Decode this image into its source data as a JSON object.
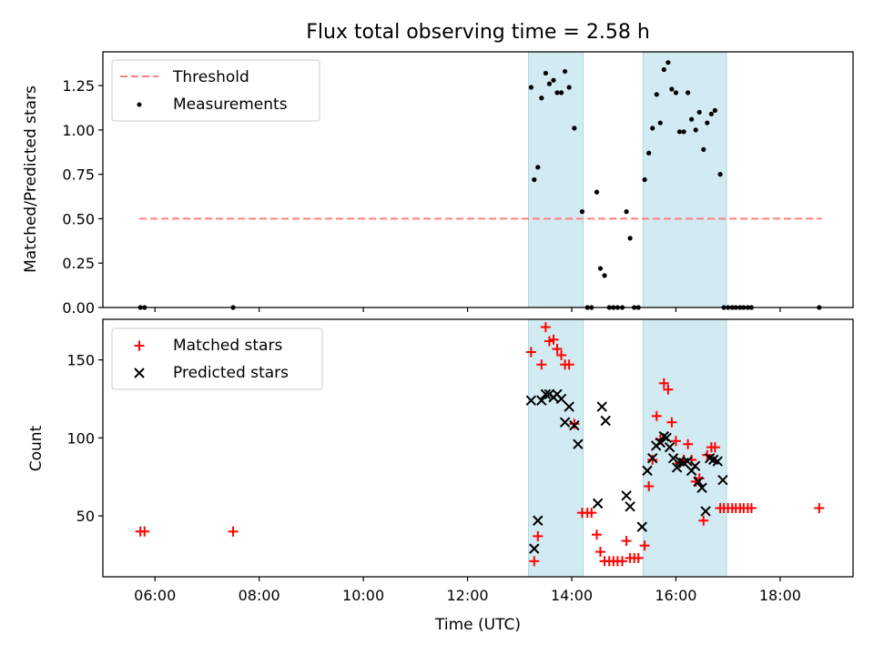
{
  "figure": {
    "title": "Flux total observing time = 2.58 h"
  },
  "colors": {
    "threshold": "#ff7f7f",
    "measurements": "#000000",
    "matched": "#ff0000",
    "predicted": "#000000",
    "shade": "#add8e6"
  },
  "chart_data": [
    {
      "type": "scatter",
      "title": "Flux total observing time = 2.58 h",
      "xlabel": "",
      "ylabel": "Matched/Predicted stars",
      "x_unit": "hours UTC",
      "xlim": [
        5.0,
        19.4
      ],
      "ylim": [
        0,
        1.44
      ],
      "x_ticks": [
        6,
        8,
        10,
        12,
        14,
        16,
        18
      ],
      "y_ticks": [
        0.0,
        0.25,
        0.5,
        0.75,
        1.0,
        1.25
      ],
      "y_tick_labels": [
        "0.00",
        "0.25",
        "0.50",
        "0.75",
        "1.00",
        "1.25"
      ],
      "legend_position": "top-left",
      "grid": false,
      "shaded_intervals": [
        [
          13.17,
          14.22
        ],
        [
          15.37,
          16.97
        ]
      ],
      "threshold": {
        "name": "Threshold",
        "value": 0.5,
        "x_range": [
          5.7,
          18.8
        ],
        "style": "dashed"
      },
      "series": [
        {
          "name": "Measurements",
          "marker": "dot",
          "points": [
            [
              5.72,
              0.0
            ],
            [
              5.8,
              0.0
            ],
            [
              7.5,
              0.0
            ],
            [
              13.22,
              1.24
            ],
            [
              13.28,
              0.72
            ],
            [
              13.35,
              0.79
            ],
            [
              13.42,
              1.18
            ],
            [
              13.5,
              1.32
            ],
            [
              13.57,
              1.26
            ],
            [
              13.65,
              1.28
            ],
            [
              13.72,
              1.21
            ],
            [
              13.8,
              1.21
            ],
            [
              13.87,
              1.33
            ],
            [
              13.95,
              1.24
            ],
            [
              14.05,
              1.01
            ],
            [
              14.2,
              0.54
            ],
            [
              14.3,
              0.0
            ],
            [
              14.38,
              0.0
            ],
            [
              14.48,
              0.65
            ],
            [
              14.55,
              0.22
            ],
            [
              14.63,
              0.18
            ],
            [
              14.72,
              0.0
            ],
            [
              14.8,
              0.0
            ],
            [
              14.88,
              0.0
            ],
            [
              14.97,
              0.0
            ],
            [
              15.05,
              0.54
            ],
            [
              15.12,
              0.39
            ],
            [
              15.2,
              0.0
            ],
            [
              15.28,
              0.0
            ],
            [
              15.4,
              0.72
            ],
            [
              15.48,
              0.87
            ],
            [
              15.55,
              1.01
            ],
            [
              15.63,
              1.2
            ],
            [
              15.7,
              1.04
            ],
            [
              15.77,
              1.34
            ],
            [
              15.85,
              1.38
            ],
            [
              15.92,
              1.23
            ],
            [
              16.0,
              1.21
            ],
            [
              16.07,
              0.99
            ],
            [
              16.15,
              0.99
            ],
            [
              16.23,
              1.21
            ],
            [
              16.3,
              1.06
            ],
            [
              16.38,
              1.0
            ],
            [
              16.45,
              1.1
            ],
            [
              16.53,
              0.89
            ],
            [
              16.6,
              1.04
            ],
            [
              16.68,
              1.09
            ],
            [
              16.75,
              1.11
            ],
            [
              16.85,
              0.75
            ],
            [
              16.92,
              0.0
            ],
            [
              17.0,
              0.0
            ],
            [
              17.08,
              0.0
            ],
            [
              17.15,
              0.0
            ],
            [
              17.23,
              0.0
            ],
            [
              17.3,
              0.0
            ],
            [
              17.38,
              0.0
            ],
            [
              17.45,
              0.0
            ],
            [
              18.75,
              0.0
            ]
          ]
        }
      ]
    },
    {
      "type": "scatter",
      "title": "",
      "xlabel": "Time (UTC)",
      "ylabel": "Count",
      "x_unit": "hours UTC",
      "xlim": [
        5.0,
        19.4
      ],
      "ylim": [
        11,
        176
      ],
      "x_ticks": [
        6,
        8,
        10,
        12,
        14,
        16,
        18
      ],
      "x_tick_labels": [
        "06:00",
        "08:00",
        "10:00",
        "12:00",
        "14:00",
        "16:00",
        "18:00"
      ],
      "y_ticks": [
        50,
        100,
        150
      ],
      "y_tick_labels": [
        "50",
        "100",
        "150"
      ],
      "legend_position": "top-left",
      "grid": false,
      "shaded_intervals": [
        [
          13.17,
          14.22
        ],
        [
          15.37,
          16.97
        ]
      ],
      "series": [
        {
          "name": "Matched stars",
          "marker": "plus",
          "points": [
            [
              5.72,
              40
            ],
            [
              5.8,
              40
            ],
            [
              7.5,
              40
            ],
            [
              13.22,
              155
            ],
            [
              13.28,
              21
            ],
            [
              13.35,
              37
            ],
            [
              13.42,
              147
            ],
            [
              13.5,
              171
            ],
            [
              13.57,
              162
            ],
            [
              13.65,
              163
            ],
            [
              13.72,
              157
            ],
            [
              13.8,
              153
            ],
            [
              13.87,
              147
            ],
            [
              13.95,
              147
            ],
            [
              14.05,
              109
            ],
            [
              14.2,
              52
            ],
            [
              14.3,
              52
            ],
            [
              14.38,
              52
            ],
            [
              14.48,
              38
            ],
            [
              14.55,
              27
            ],
            [
              14.63,
              21
            ],
            [
              14.72,
              21
            ],
            [
              14.8,
              21
            ],
            [
              14.88,
              21
            ],
            [
              14.97,
              21
            ],
            [
              15.05,
              34
            ],
            [
              15.12,
              23
            ],
            [
              15.2,
              23
            ],
            [
              15.28,
              23
            ],
            [
              15.4,
              31
            ],
            [
              15.48,
              69
            ],
            [
              15.55,
              86
            ],
            [
              15.63,
              114
            ],
            [
              15.7,
              99
            ],
            [
              15.77,
              135
            ],
            [
              15.85,
              131
            ],
            [
              15.92,
              110
            ],
            [
              16.0,
              98
            ],
            [
              16.07,
              84
            ],
            [
              16.15,
              86
            ],
            [
              16.23,
              96
            ],
            [
              16.3,
              86
            ],
            [
              16.38,
              72
            ],
            [
              16.45,
              74
            ],
            [
              16.53,
              47
            ],
            [
              16.6,
              89
            ],
            [
              16.68,
              94
            ],
            [
              16.75,
              94
            ],
            [
              16.85,
              55
            ],
            [
              16.92,
              55
            ],
            [
              17.0,
              55
            ],
            [
              17.08,
              55
            ],
            [
              17.15,
              55
            ],
            [
              17.23,
              55
            ],
            [
              17.3,
              55
            ],
            [
              17.38,
              55
            ],
            [
              17.45,
              55
            ],
            [
              18.75,
              55
            ]
          ]
        },
        {
          "name": "Predicted stars",
          "marker": "x",
          "points": [
            [
              13.22,
              124
            ],
            [
              13.28,
              29
            ],
            [
              13.35,
              47
            ],
            [
              13.42,
              124
            ],
            [
              13.5,
              128
            ],
            [
              13.57,
              128
            ],
            [
              13.65,
              126
            ],
            [
              13.72,
              128
            ],
            [
              13.8,
              125
            ],
            [
              13.87,
              110
            ],
            [
              13.95,
              120
            ],
            [
              14.05,
              108
            ],
            [
              14.12,
              96
            ],
            [
              14.5,
              58
            ],
            [
              14.58,
              120
            ],
            [
              14.65,
              111
            ],
            [
              15.05,
              63
            ],
            [
              15.12,
              56
            ],
            [
              15.35,
              43
            ],
            [
              15.45,
              79
            ],
            [
              15.55,
              87
            ],
            [
              15.62,
              95
            ],
            [
              15.7,
              97
            ],
            [
              15.77,
              101
            ],
            [
              15.82,
              100
            ],
            [
              15.88,
              94
            ],
            [
              15.95,
              87
            ],
            [
              16.02,
              81
            ],
            [
              16.08,
              85
            ],
            [
              16.15,
              84
            ],
            [
              16.22,
              85
            ],
            [
              16.3,
              79
            ],
            [
              16.37,
              82
            ],
            [
              16.43,
              72
            ],
            [
              16.5,
              68
            ],
            [
              16.57,
              53
            ],
            [
              16.65,
              87
            ],
            [
              16.72,
              86
            ],
            [
              16.8,
              85
            ],
            [
              16.9,
              73
            ]
          ]
        }
      ]
    }
  ]
}
